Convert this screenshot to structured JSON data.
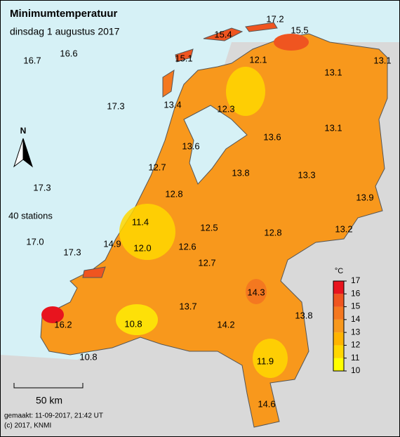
{
  "title": "Minimumtemperatuur",
  "subtitle": "dinsdag 1 augustus 2017",
  "station_count": "40 stations",
  "north": "N",
  "scale_bar": "50 km",
  "footer": {
    "made": "gemaakt: 11-09-2017, 21:42 UT",
    "copyright": "(c) 2017, KNMI"
  },
  "legend": {
    "unit": "°C",
    "ticks": [
      10,
      11,
      12,
      13,
      14,
      15,
      16,
      17
    ],
    "colors": [
      "#ffff00",
      "#ffd700",
      "#ffb400",
      "#f8981c",
      "#f47820",
      "#ef5520",
      "#e8141e"
    ]
  },
  "stations": [
    17.2,
    15.4,
    15.5,
    16.6,
    16.7,
    15.1,
    12.1,
    13.1,
    13.1,
    17.3,
    13.4,
    12.3,
    13.1,
    13.6,
    13.6,
    12.7,
    13.8,
    13.3,
    17.3,
    12.8,
    13.9,
    11.4,
    12.5,
    12.8,
    13.2,
    {
      "value": 17,
      "label": "17.0"
    },
    14.9,
    {
      "value": 12,
      "label": "12.0"
    },
    12.6,
    17.3,
    12.7,
    14.3,
    13.7,
    13.8,
    14.2,
    16.2,
    10.8,
    11.9,
    10.8,
    14.6
  ]
}
